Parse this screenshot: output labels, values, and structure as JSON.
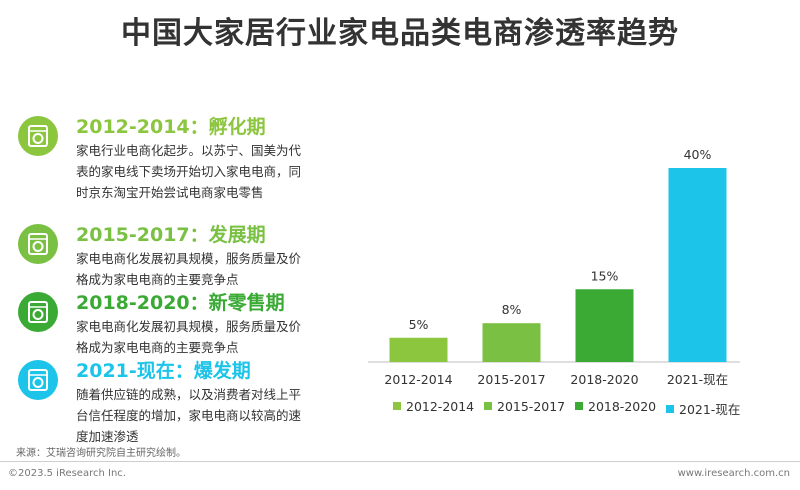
{
  "title": "中国大家居行业家电品类电商渗透率趋势",
  "phases": [
    {
      "heading": "2012-2014：孵化期",
      "color": "#8cc63f",
      "text": "家电行业电商化起步。以苏宁、国美为代表的家电线下卖场开始切入家电电商，同时京东淘宝开始尝试电商家电零售"
    },
    {
      "heading": "2015-2017：发展期",
      "color": "#7ac143",
      "text": "家电电商化发展初具规模，服务质量及价格成为家电电商的主要竞争点"
    },
    {
      "heading": "2018-2020：新零售期",
      "color": "#3aaa35",
      "text": "家电电商化发展初具规模，服务质量及价格成为家电电商的主要竞争点"
    },
    {
      "heading": "2021-现在：爆发期",
      "color": "#1dc4e9",
      "text": "随着供应链的成熟，以及消费者对线上平台信任程度的增加，家电电商以较高的速度加速渗透"
    }
  ],
  "source": "来源：艾瑞咨询研究院自主研究绘制。",
  "copyright": "©2023.5 iResearch Inc.",
  "website": "www.iresearch.com.cn",
  "chart_data": {
    "type": "bar",
    "categories": [
      "2012-2014",
      "2015-2017",
      "2018-2020",
      "2021-现在"
    ],
    "values": [
      5,
      8,
      15,
      40
    ],
    "labels": [
      "5%",
      "8%",
      "15%",
      "40%"
    ],
    "colors": [
      "#8cc63f",
      "#7ac143",
      "#3aaa35",
      "#1dc4e9"
    ],
    "unit": "%",
    "ylim": [
      0,
      40
    ],
    "grid": false,
    "legend_position": "bottom"
  }
}
